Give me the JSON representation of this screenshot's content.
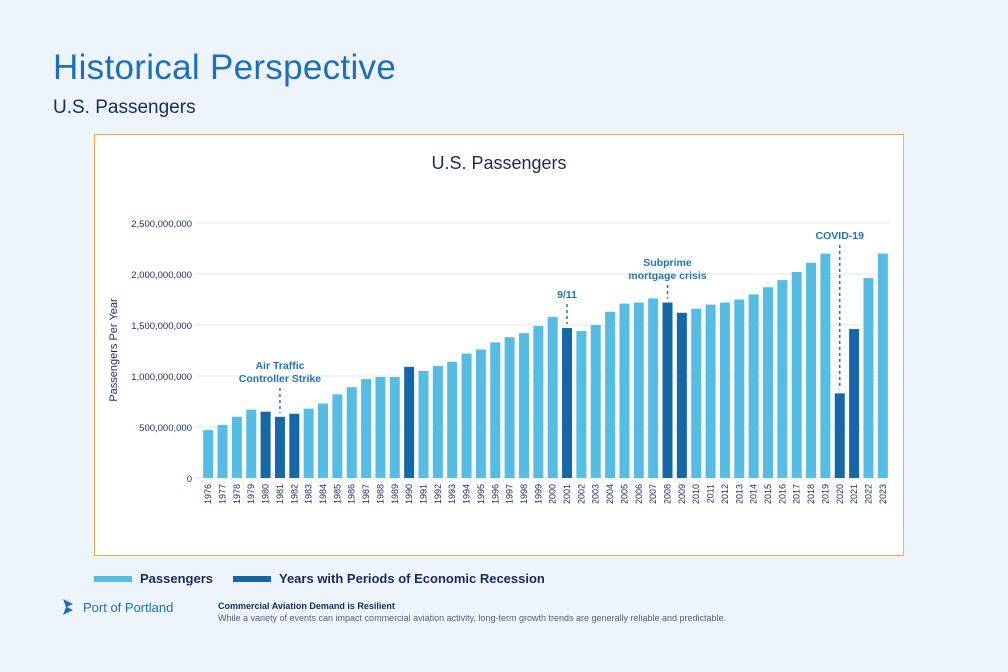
{
  "page": {
    "title": "Historical Perspective",
    "subtitle": "U.S. Passengers"
  },
  "footer": {
    "logo_text": "Port of Portland",
    "note_title": "Commercial Aviation Demand is Resilient",
    "note_body": "While a variety of events can impact commercial aviation activity, long-term growth trends are generally reliable and predictable."
  },
  "colors": {
    "passengers": "#55bde3",
    "recession": "#1468a8",
    "annotation": "#1f74b9",
    "border": "#f5a54a"
  },
  "chart_data": {
    "type": "bar",
    "title": "U.S. Passengers",
    "xlabel": "",
    "ylabel": "Passengers Per Year",
    "ylim": [
      0,
      2500000000
    ],
    "yticks": [
      0,
      500000000,
      1000000000,
      1500000000,
      2000000000,
      2500000000
    ],
    "ytick_labels": [
      "0",
      "500,000,000",
      "1,000,000,000",
      "1,500,000,000",
      "2,000,000,000",
      "2,500,000,000"
    ],
    "grid": true,
    "legend_position": "bottom",
    "legend": [
      "Passengers",
      "Years with Periods of Economic Recession"
    ],
    "categories": [
      "1976",
      "1977",
      "1978",
      "1979",
      "1980",
      "1981",
      "1982",
      "1983",
      "1984",
      "1985",
      "1986",
      "1987",
      "1988",
      "1989",
      "1990",
      "1991",
      "1992",
      "1993",
      "1994",
      "1995",
      "1996",
      "1997",
      "1998",
      "1999",
      "2000",
      "2001",
      "2002",
      "2003",
      "2004",
      "2005",
      "2006",
      "2007",
      "2008",
      "2009",
      "2010",
      "2011",
      "2012",
      "2013",
      "2014",
      "2015",
      "2016",
      "2017",
      "2018",
      "2019",
      "2020",
      "2021",
      "2022",
      "2023"
    ],
    "values": [
      470000000,
      520000000,
      600000000,
      670000000,
      650000000,
      600000000,
      630000000,
      680000000,
      730000000,
      820000000,
      890000000,
      970000000,
      990000000,
      990000000,
      1090000000,
      1050000000,
      1100000000,
      1140000000,
      1220000000,
      1260000000,
      1330000000,
      1380000000,
      1420000000,
      1490000000,
      1580000000,
      1470000000,
      1440000000,
      1500000000,
      1630000000,
      1710000000,
      1720000000,
      1760000000,
      1720000000,
      1620000000,
      1660000000,
      1700000000,
      1720000000,
      1750000000,
      1800000000,
      1870000000,
      1940000000,
      2020000000,
      2110000000,
      2200000000,
      830000000,
      1460000000,
      1960000000,
      2200000000
    ],
    "recession_years": [
      "1980",
      "1981",
      "1982",
      "1990",
      "2001",
      "2008",
      "2009",
      "2020",
      "2021"
    ],
    "annotations": [
      {
        "year": "1981",
        "lines": [
          "Air Traffic",
          "Controller Strike"
        ]
      },
      {
        "year": "2001",
        "lines": [
          "9/11"
        ]
      },
      {
        "year": "2008",
        "lines": [
          "Subprime",
          "mortgage crisis"
        ]
      },
      {
        "year": "2020",
        "lines": [
          "COVID-19"
        ]
      }
    ]
  }
}
